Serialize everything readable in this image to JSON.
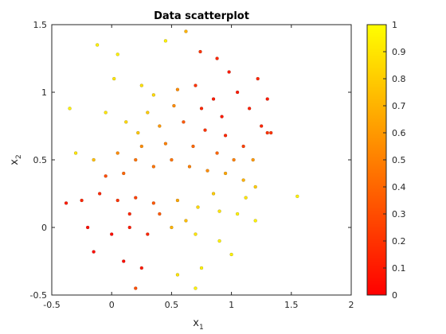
{
  "chart_data": {
    "type": "scatter",
    "title": "Data scatterplot",
    "xlabel": "x",
    "xlabel_sub": "1",
    "ylabel": "x",
    "ylabel_sub": "2",
    "xlim": [
      -0.5,
      2
    ],
    "ylim": [
      -0.5,
      1.5
    ],
    "xticks": [
      -0.5,
      0,
      0.5,
      1,
      1.5,
      2
    ],
    "xtick_labels": [
      "-0.5",
      "0",
      "0.5",
      "1",
      "1.5",
      "2"
    ],
    "yticks": [
      -0.5,
      0,
      0.5,
      1,
      1.5
    ],
    "ytick_labels": [
      "-0.5",
      "0",
      "0.5",
      "1",
      "1.5"
    ],
    "grid": false,
    "colormap": "autumn",
    "colormap_colors": {
      "low": "#ff0000",
      "high": "#ffff00"
    },
    "colorbar": {
      "position": "right",
      "range": [
        0,
        1
      ],
      "ticks": [
        0,
        0.1,
        0.2,
        0.3,
        0.4,
        0.5,
        0.6,
        0.7,
        0.8,
        0.9,
        1
      ],
      "tick_labels": [
        "0",
        "0.1",
        "0.2",
        "0.3",
        "0.4",
        "0.5",
        "0.6",
        "0.7",
        "0.8",
        "0.9",
        "1"
      ]
    },
    "series": [
      {
        "points": [
          {
            "x": 0.62,
            "y": 1.45,
            "c": 0.7
          },
          {
            "x": -0.12,
            "y": 1.35,
            "c": 0.95
          },
          {
            "x": 0.45,
            "y": 1.38,
            "c": 0.95
          },
          {
            "x": 0.74,
            "y": 1.3,
            "c": 0.2
          },
          {
            "x": 0.88,
            "y": 1.25,
            "c": 0.15
          },
          {
            "x": 1.55,
            "y": 0.23,
            "c": 0.95
          },
          {
            "x": 0.02,
            "y": 1.1,
            "c": 0.9
          },
          {
            "x": 0.25,
            "y": 1.05,
            "c": 0.88
          },
          {
            "x": 0.35,
            "y": 0.98,
            "c": 0.85
          },
          {
            "x": 0.55,
            "y": 1.02,
            "c": 0.55
          },
          {
            "x": 0.7,
            "y": 1.05,
            "c": 0.2
          },
          {
            "x": 0.85,
            "y": 0.95,
            "c": 0.1
          },
          {
            "x": 1.05,
            "y": 1.0,
            "c": 0.1
          },
          {
            "x": 1.15,
            "y": 0.88,
            "c": 0.12
          },
          {
            "x": 1.25,
            "y": 0.75,
            "c": 0.15
          },
          {
            "x": 1.3,
            "y": 0.7,
            "c": 0.2
          },
          {
            "x": -0.05,
            "y": 0.85,
            "c": 0.9
          },
          {
            "x": 0.12,
            "y": 0.78,
            "c": 0.85
          },
          {
            "x": 0.22,
            "y": 0.7,
            "c": 0.78
          },
          {
            "x": 0.4,
            "y": 0.75,
            "c": 0.6
          },
          {
            "x": 0.6,
            "y": 0.78,
            "c": 0.35
          },
          {
            "x": 0.78,
            "y": 0.72,
            "c": 0.2
          },
          {
            "x": 0.95,
            "y": 0.68,
            "c": 0.15
          },
          {
            "x": 1.1,
            "y": 0.6,
            "c": 0.25
          },
          {
            "x": -0.3,
            "y": 0.55,
            "c": 0.9
          },
          {
            "x": -0.15,
            "y": 0.5,
            "c": 0.75
          },
          {
            "x": 0.05,
            "y": 0.55,
            "c": 0.55
          },
          {
            "x": 0.2,
            "y": 0.5,
            "c": 0.45
          },
          {
            "x": 0.35,
            "y": 0.45,
            "c": 0.45
          },
          {
            "x": 0.5,
            "y": 0.5,
            "c": 0.45
          },
          {
            "x": 0.65,
            "y": 0.45,
            "c": 0.5
          },
          {
            "x": 0.8,
            "y": 0.42,
            "c": 0.55
          },
          {
            "x": 0.95,
            "y": 0.4,
            "c": 0.65
          },
          {
            "x": 1.1,
            "y": 0.35,
            "c": 0.7
          },
          {
            "x": 1.2,
            "y": 0.3,
            "c": 0.8
          },
          {
            "x": -0.38,
            "y": 0.18,
            "c": 0.1
          },
          {
            "x": -0.25,
            "y": 0.2,
            "c": 0.15
          },
          {
            "x": -0.1,
            "y": 0.25,
            "c": 0.15
          },
          {
            "x": 0.05,
            "y": 0.2,
            "c": 0.2
          },
          {
            "x": 0.2,
            "y": 0.22,
            "c": 0.25
          },
          {
            "x": 0.35,
            "y": 0.18,
            "c": 0.35
          },
          {
            "x": 0.55,
            "y": 0.2,
            "c": 0.65
          },
          {
            "x": 0.72,
            "y": 0.15,
            "c": 0.85
          },
          {
            "x": 0.9,
            "y": 0.12,
            "c": 0.9
          },
          {
            "x": 1.05,
            "y": 0.1,
            "c": 0.95
          },
          {
            "x": 1.2,
            "y": 0.05,
            "c": 0.95
          },
          {
            "x": -0.2,
            "y": 0.0,
            "c": 0.05
          },
          {
            "x": 0.0,
            "y": -0.05,
            "c": 0.05
          },
          {
            "x": 0.15,
            "y": 0.0,
            "c": 0.1
          },
          {
            "x": 0.3,
            "y": -0.05,
            "c": 0.15
          },
          {
            "x": 0.5,
            "y": 0.0,
            "c": 0.7
          },
          {
            "x": 0.7,
            "y": -0.05,
            "c": 0.9
          },
          {
            "x": 0.9,
            "y": -0.1,
            "c": 0.95
          },
          {
            "x": 1.0,
            "y": -0.2,
            "c": 0.95
          },
          {
            "x": -0.15,
            "y": -0.18,
            "c": 0.05
          },
          {
            "x": 0.1,
            "y": -0.25,
            "c": 0.05
          },
          {
            "x": 0.25,
            "y": -0.3,
            "c": 0.1
          },
          {
            "x": 0.55,
            "y": -0.35,
            "c": 0.9
          },
          {
            "x": 0.75,
            "y": -0.3,
            "c": 0.95
          },
          {
            "x": 0.2,
            "y": -0.45,
            "c": 0.3
          },
          {
            "x": 0.7,
            "y": -0.45,
            "c": 0.95
          },
          {
            "x": 1.3,
            "y": 0.95,
            "c": 0.1
          },
          {
            "x": 1.33,
            "y": 0.7,
            "c": 0.2
          },
          {
            "x": -0.35,
            "y": 0.88,
            "c": 0.95
          },
          {
            "x": 0.05,
            "y": 1.28,
            "c": 0.95
          },
          {
            "x": 0.98,
            "y": 1.15,
            "c": 0.1
          },
          {
            "x": 1.22,
            "y": 1.1,
            "c": 0.15
          },
          {
            "x": 0.1,
            "y": 0.4,
            "c": 0.4
          },
          {
            "x": 0.25,
            "y": 0.6,
            "c": 0.55
          },
          {
            "x": 0.45,
            "y": 0.62,
            "c": 0.5
          },
          {
            "x": 0.68,
            "y": 0.6,
            "c": 0.4
          },
          {
            "x": 0.88,
            "y": 0.55,
            "c": 0.4
          },
          {
            "x": 1.02,
            "y": 0.5,
            "c": 0.5
          },
          {
            "x": 0.15,
            "y": 0.1,
            "c": 0.15
          },
          {
            "x": 0.4,
            "y": 0.1,
            "c": 0.35
          },
          {
            "x": 0.62,
            "y": 0.05,
            "c": 0.75
          },
          {
            "x": 0.85,
            "y": 0.25,
            "c": 0.8
          },
          {
            "x": 1.12,
            "y": 0.22,
            "c": 0.9
          },
          {
            "x": -0.05,
            "y": 0.38,
            "c": 0.3
          },
          {
            "x": 0.3,
            "y": 0.85,
            "c": 0.8
          },
          {
            "x": 0.52,
            "y": 0.9,
            "c": 0.55
          },
          {
            "x": 0.75,
            "y": 0.88,
            "c": 0.15
          },
          {
            "x": 0.92,
            "y": 0.82,
            "c": 0.1
          },
          {
            "x": 1.18,
            "y": 0.5,
            "c": 0.6
          }
        ]
      }
    ]
  }
}
